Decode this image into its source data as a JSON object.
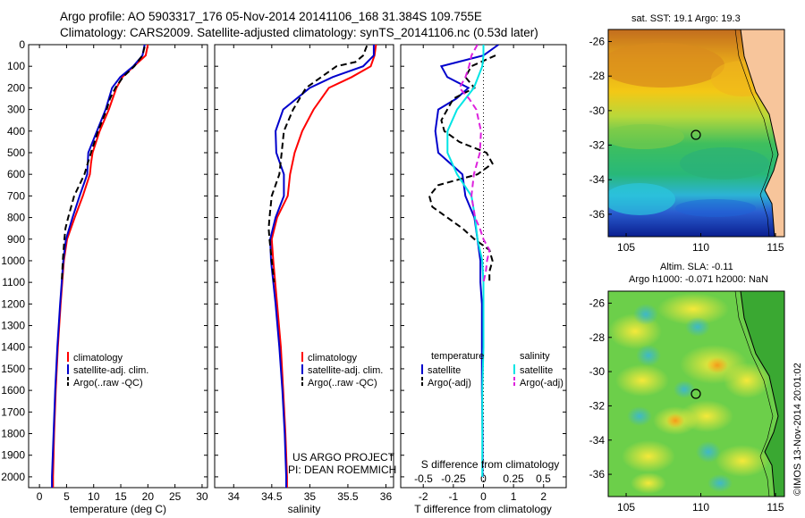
{
  "title": {
    "line1": "Argo profile: AO 5903317_176 05-Nov-2014 20141106_168 31.384S 109.755E",
    "line2": "Climatology: CARS2009. Satellite-adjusted climatology: synTS_20141106.nc (0.53d later)"
  },
  "depth_ticks": [
    "0",
    "100",
    "200",
    "300",
    "400",
    "500",
    "600",
    "700",
    "800",
    "900",
    "1000",
    "1100",
    "1200",
    "1300",
    "1400",
    "1500",
    "1600",
    "1700",
    "1800",
    "1900",
    "2000"
  ],
  "colors": {
    "climatology": "#ff0000",
    "satellite": "#0000cc",
    "argo": "#000000",
    "cyan": "#00e5e5",
    "magenta": "#dd22dd"
  },
  "panel_temp": {
    "xlabel": "temperature (deg C)",
    "xticks": [
      "0",
      "5",
      "10",
      "15",
      "20",
      "25",
      "30"
    ],
    "legend": [
      "climatology",
      "satellite-adj. clim.",
      "Argo(..raw -QC)"
    ]
  },
  "panel_sal": {
    "xlabel": "salinity",
    "xticks": [
      "34",
      "34.5",
      "35",
      "35.5",
      "36"
    ],
    "legend": [
      "climatology",
      "satellite-adj. clim.",
      "Argo(..raw -QC)"
    ],
    "credit1": "US ARGO PROJECT",
    "credit2": "PI: DEAN ROEMMICH"
  },
  "panel_diff": {
    "xlabel_bottom": "T difference from climatology",
    "xlabel_top": "S difference from climatology",
    "xticks_bottom": [
      "-2",
      "-1",
      "0",
      "1",
      "2"
    ],
    "xticks_top": [
      "-0.5",
      "-0.25",
      "0",
      "0.25",
      "0.5"
    ],
    "legend_temp_title": "temperature",
    "legend_sal_title": "salinity",
    "legend_sat": "satellite",
    "legend_argo": "Argo(-adj)"
  },
  "map_sst": {
    "title": "sat. SST: 19.1  Argo: 19.3",
    "yticks": [
      "-26",
      "-28",
      "-30",
      "-32",
      "-34",
      "-36"
    ],
    "xticks": [
      "105",
      "110",
      "115"
    ]
  },
  "map_sla": {
    "title1": "Altim. SLA: -0.11",
    "title2": "Argo h1000: -0.071 h2000: NaN",
    "yticks": [
      "-26",
      "-28",
      "-30",
      "-32",
      "-34",
      "-36"
    ],
    "xticks": [
      "105",
      "110",
      "115"
    ],
    "stamp": "©IMOS 13-Nov-2014 20:01:02"
  },
  "chart_data": [
    {
      "type": "line",
      "xlabel": "temperature (deg C)",
      "ylabel": "",
      "xlim": [
        -2,
        31
      ],
      "ylim": [
        2050,
        0
      ],
      "series": [
        {
          "name": "climatology",
          "depth": [
            0,
            50,
            100,
            150,
            200,
            250,
            300,
            400,
            500,
            550,
            600,
            700,
            800,
            900,
            1000,
            1200,
            1400,
            1600,
            1800,
            2000,
            2050
          ],
          "values": [
            20.0,
            19.6,
            17.4,
            15.3,
            14.2,
            13.5,
            12.8,
            11.1,
            9.8,
            9.5,
            9.3,
            8.0,
            6.5,
            5.1,
            4.5,
            3.9,
            3.4,
            3.0,
            2.7,
            2.5,
            2.5
          ]
        },
        {
          "name": "satellite-adj. clim.",
          "depth": [
            0,
            50,
            100,
            150,
            200,
            250,
            300,
            400,
            500,
            600,
            700,
            800,
            900,
            1000,
            1200,
            1400,
            1600,
            1800,
            2000,
            2050
          ],
          "values": [
            19.4,
            19.0,
            17.3,
            14.9,
            13.4,
            12.8,
            12.2,
            10.6,
            9.0,
            8.8,
            7.4,
            6.1,
            4.9,
            4.4,
            3.8,
            3.3,
            2.9,
            2.6,
            2.3,
            2.3
          ]
        },
        {
          "name": "Argo(..raw -QC)",
          "depth": [
            10,
            50,
            100,
            150,
            200,
            250,
            300,
            400,
            500,
            600,
            700,
            800,
            850,
            900,
            1000,
            1100
          ],
          "values": [
            19.4,
            19.0,
            17.5,
            15.4,
            14.0,
            13.0,
            12.4,
            10.8,
            9.5,
            8.3,
            6.4,
            5.3,
            4.8,
            4.6,
            4.3,
            4.1
          ]
        }
      ]
    },
    {
      "type": "line",
      "xlabel": "salinity",
      "ylabel": "",
      "xlim": [
        33.75,
        36.1
      ],
      "ylim": [
        2050,
        0
      ],
      "series": [
        {
          "name": "climatology",
          "depth": [
            0,
            50,
            100,
            150,
            200,
            300,
            400,
            500,
            600,
            700,
            800,
            900,
            1000,
            1200,
            1400,
            1600,
            1800,
            2000,
            2050
          ],
          "values": [
            35.87,
            35.85,
            35.8,
            35.55,
            35.25,
            35.05,
            34.9,
            34.8,
            34.74,
            34.71,
            34.57,
            34.5,
            34.52,
            34.57,
            34.62,
            34.65,
            34.68,
            34.7,
            34.7
          ]
        },
        {
          "name": "satellite-adj. clim.",
          "depth": [
            0,
            50,
            100,
            150,
            200,
            300,
            400,
            500,
            600,
            700,
            800,
            900,
            1000,
            1200,
            1400,
            1600,
            1800,
            2000,
            2050
          ],
          "values": [
            35.84,
            35.84,
            35.7,
            35.3,
            35.0,
            34.65,
            34.55,
            34.56,
            34.66,
            34.66,
            34.55,
            34.48,
            34.49,
            34.55,
            34.6,
            34.64,
            34.67,
            34.69,
            34.69
          ]
        },
        {
          "name": "Argo(..raw -QC)",
          "depth": [
            5,
            50,
            80,
            100,
            150,
            200,
            300,
            400,
            500,
            600,
            700,
            800,
            850,
            900,
            1000,
            1100
          ],
          "values": [
            35.75,
            35.7,
            35.6,
            35.35,
            35.15,
            34.95,
            34.78,
            34.66,
            34.63,
            34.6,
            34.5,
            34.47,
            34.46,
            34.47,
            34.5,
            34.53
          ]
        }
      ]
    },
    {
      "type": "line",
      "xlabel": "T difference from climatology",
      "xlabel_top": "S difference from climatology",
      "xlim": [
        -2.75,
        2.75
      ],
      "xlim_top": [
        -0.69,
        0.69
      ],
      "ylim": [
        2050,
        0
      ],
      "series": [
        {
          "name": "satellite",
          "quantity": "temperature",
          "depth": [
            0,
            50,
            100,
            150,
            200,
            250,
            300,
            400,
            500,
            600,
            700,
            800,
            900,
            1000,
            1100,
            1200,
            1400,
            1600,
            1800,
            2000
          ],
          "values": [
            0.5,
            0.0,
            -1.4,
            -1.2,
            -0.5,
            -0.9,
            -1.5,
            -1.6,
            -1.5,
            -0.7,
            -0.6,
            -0.3,
            -0.2,
            -0.1,
            -0.1,
            -0.05,
            -0.05,
            -0.05,
            -0.03,
            -0.03
          ]
        },
        {
          "name": "Argo(-adj)",
          "quantity": "temperature",
          "depth": [
            50,
            100,
            150,
            200,
            250,
            300,
            350,
            400,
            450,
            500,
            550,
            600,
            650,
            700,
            750,
            800,
            850,
            900,
            950,
            1000,
            1050,
            1100
          ],
          "values": [
            0.4,
            -0.4,
            -0.6,
            -0.3,
            -1.0,
            -1.2,
            -1.4,
            -1.3,
            -0.8,
            0.1,
            0.3,
            -0.2,
            -1.5,
            -1.8,
            -1.7,
            -1.2,
            -0.7,
            -0.3,
            0.2,
            0.3,
            0.2,
            0.2
          ]
        },
        {
          "name": "satellite",
          "quantity": "salinity",
          "depth": [
            0,
            50,
            100,
            200,
            300,
            400,
            500,
            600,
            700,
            800,
            900,
            1000,
            1100,
            1200,
            1400,
            1600,
            1800,
            2000
          ],
          "values": [
            0.0,
            0.0,
            -0.01,
            -0.08,
            -0.22,
            -0.3,
            -0.3,
            -0.22,
            -0.1,
            -0.07,
            -0.05,
            -0.01,
            0.0,
            0.0,
            0.0,
            -0.01,
            -0.01,
            -0.01
          ]
        },
        {
          "name": "Argo(-adj)",
          "quantity": "salinity",
          "depth": [
            0,
            50,
            100,
            150,
            200,
            250,
            300,
            400,
            500,
            600,
            700,
            800,
            850,
            900,
            950,
            1000,
            1050,
            1100
          ],
          "values": [
            -0.05,
            -0.1,
            -0.12,
            -0.15,
            -0.2,
            -0.12,
            -0.06,
            -0.02,
            -0.03,
            -0.08,
            -0.1,
            -0.07,
            -0.03,
            0.0,
            0.05,
            0.03,
            0.02,
            0.0
          ]
        }
      ]
    }
  ]
}
